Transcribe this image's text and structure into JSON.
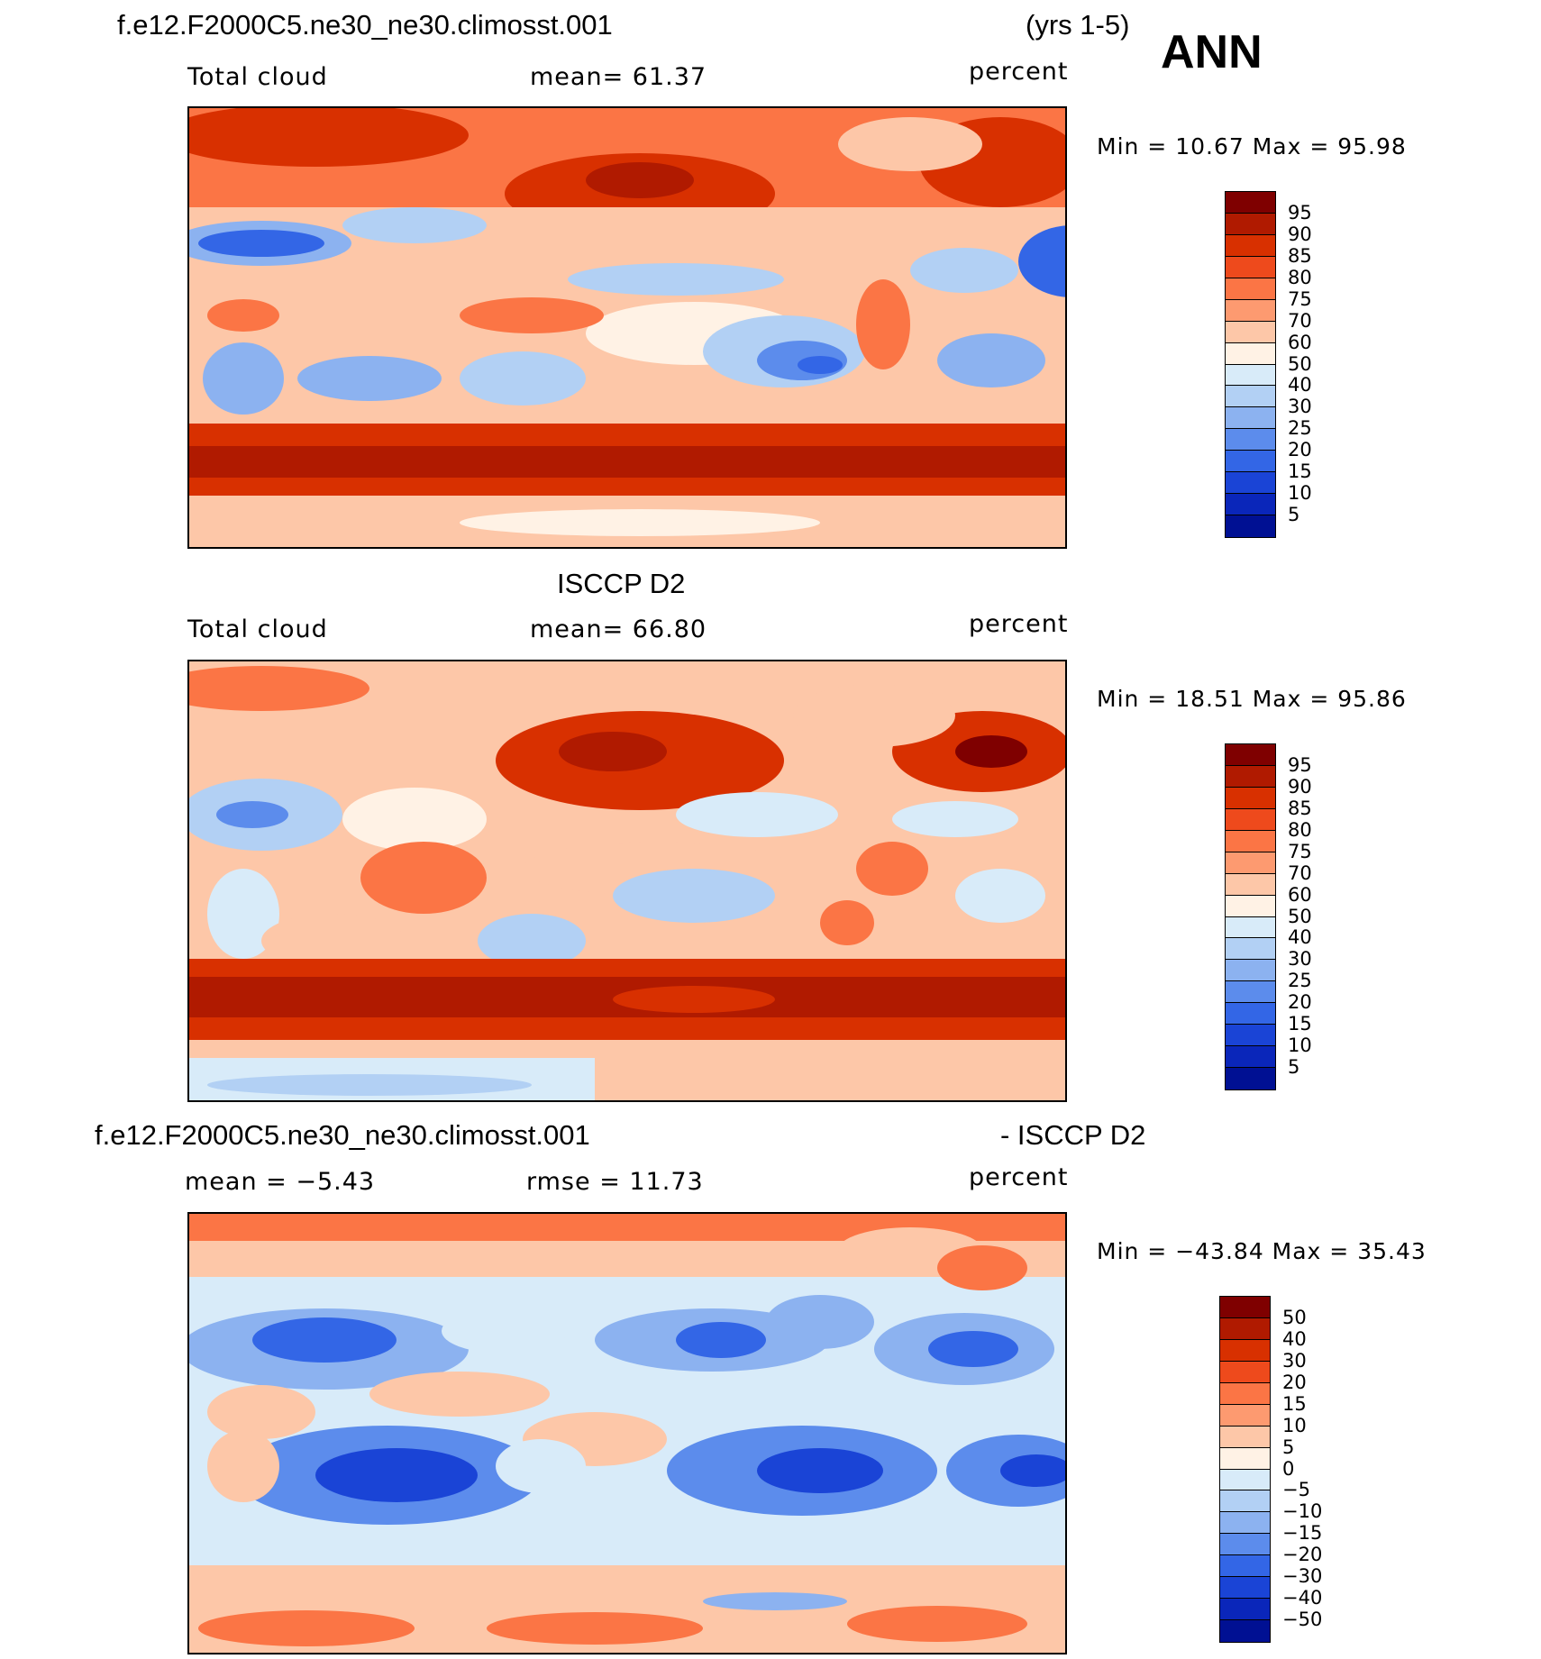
{
  "header": {
    "case_name": "f.e12.F2000C5.ne30_ne30.climosst.001",
    "years": "(yrs 1-5)",
    "season": "ANN",
    "obs_name": "ISCCP D2",
    "diff_case_name": "f.e12.F2000C5.ne30_ne30.climosst.001",
    "diff_suffix": "- ISCCP D2"
  },
  "panels": [
    {
      "id": "model",
      "left_label": "Total cloud",
      "mid_label": "mean=   61.37",
      "units": "percent",
      "minmax": "Min =   10.67  Max =   95.98",
      "colorbar_labels": [
        "95",
        "90",
        "85",
        "80",
        "75",
        "70",
        "60",
        "50",
        "40",
        "30",
        "25",
        "20",
        "15",
        "10",
        "5"
      ],
      "colors": [
        "#7f0000",
        "#b01a00",
        "#d83000",
        "#ee4a1c",
        "#fb7545",
        "#fd9a70",
        "#fdc7a8",
        "#fff2e5",
        "#d8ebf9",
        "#b2d0f4",
        "#8cb2f0",
        "#5c8cec",
        "#3366e6",
        "#1a44d6",
        "#0a26ba",
        "#001093"
      ]
    },
    {
      "id": "obs",
      "left_label": "Total cloud",
      "mid_label": "mean=   66.80",
      "units": "percent",
      "minmax": "Min =   18.51  Max =   95.86",
      "colorbar_labels": [
        "95",
        "90",
        "85",
        "80",
        "75",
        "70",
        "60",
        "50",
        "40",
        "30",
        "25",
        "20",
        "15",
        "10",
        "5"
      ],
      "colors": [
        "#7f0000",
        "#b01a00",
        "#d83000",
        "#ee4a1c",
        "#fb7545",
        "#fd9a70",
        "#fdc7a8",
        "#fff2e5",
        "#d8ebf9",
        "#b2d0f4",
        "#8cb2f0",
        "#5c8cec",
        "#3366e6",
        "#1a44d6",
        "#0a26ba",
        "#001093"
      ]
    },
    {
      "id": "diff",
      "left_label": "mean =   −5.43",
      "mid_label": "rmse =   11.73",
      "units": "percent",
      "minmax": "Min = −43.84  Max =   35.43",
      "colorbar_labels": [
        "50",
        "40",
        "30",
        "20",
        "15",
        "10",
        "5",
        "0",
        "−5",
        "−10",
        "−15",
        "−20",
        "−30",
        "−40",
        "−50"
      ],
      "colors": [
        "#7f0000",
        "#b01a00",
        "#d83000",
        "#ee4a1c",
        "#fb7545",
        "#fd9a70",
        "#fdc7a8",
        "#fff2e5",
        "#d8ebf9",
        "#b2d0f4",
        "#8cb2f0",
        "#5c8cec",
        "#3366e6",
        "#1a44d6",
        "#0a26ba",
        "#001093"
      ]
    }
  ]
}
